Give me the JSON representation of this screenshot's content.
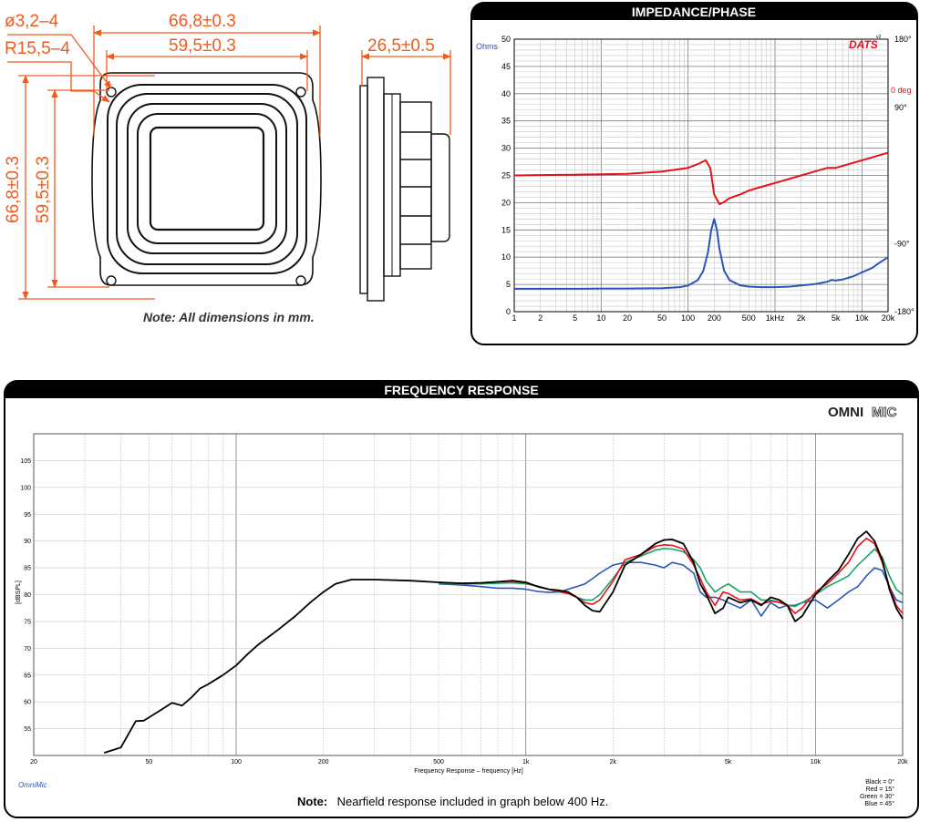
{
  "colors": {
    "dimension": "#f05a1e",
    "impedance": "#2a56b8",
    "phase": "#e8101a",
    "black_0deg": "#000000",
    "red_15deg": "#e8101a",
    "green_30deg": "#19a463",
    "blue_45deg": "#2a56b8"
  },
  "drawing": {
    "dim_hole": "ø3,2–4",
    "dim_radius": "R15,5–4",
    "dim_outer_width": "66,8±0.3",
    "dim_inner_width": "59,5±0.3",
    "dim_outer_height": "66,8±0.3",
    "dim_inner_height": "59,5±0.3",
    "dim_depth": "26,5±0.5",
    "note": "Note:  All dimensions in mm."
  },
  "impedance_panel": {
    "title": "IMPEDANCE/PHASE",
    "logo": "DATS",
    "logo_version": "v2",
    "left_unit": "Ohms",
    "right_zero_label": "0 deg"
  },
  "fr_panel": {
    "title": "FREQUENCY RESPONSE",
    "logo_bold": "OMNI",
    "logo_outline": "MIC",
    "footer_left": "OmniMic",
    "note_bold": "Note:",
    "note_text": " Nearfield response included in graph below 400 Hz.",
    "legend": [
      "Black =  0°",
      "Red = 15°",
      "Green = 30°",
      "Blue = 45°"
    ]
  },
  "chart_data": [
    {
      "type": "line",
      "title": "IMPEDANCE/PHASE",
      "xlabel": "",
      "ylabel": "Ohms",
      "x_scale": "log",
      "xlim": [
        1,
        20000
      ],
      "ylim": [
        0,
        50
      ],
      "x_tick_labels": [
        "1",
        "2",
        "5",
        "10",
        "20",
        "50",
        "100",
        "200",
        "500",
        "1kHz",
        "2k",
        "5k",
        "10k",
        "20k"
      ],
      "y_tick_labels": [
        "0",
        "5",
        "10",
        "15",
        "20",
        "25",
        "30",
        "35",
        "40",
        "45",
        "50"
      ],
      "y2_tick_labels": [
        "180°",
        "90°",
        "0 deg",
        "-90°",
        "-180°"
      ],
      "y2lim": [
        -180,
        180
      ],
      "grid": true,
      "series": [
        {
          "color": "#2a56b8",
          "x": [
            1,
            2,
            5,
            10,
            20,
            50,
            80,
            100,
            130,
            150,
            170,
            185,
            200,
            215,
            230,
            260,
            300,
            400,
            500,
            700,
            1000,
            1500,
            2000,
            3000,
            4000,
            4500,
            5000,
            6000,
            8000,
            10000,
            13000,
            16000,
            20000
          ],
          "y": [
            4.2,
            4.2,
            4.2,
            4.25,
            4.25,
            4.3,
            4.5,
            4.8,
            5.8,
            7.5,
            11.0,
            15.0,
            17.0,
            15.0,
            11.5,
            7.5,
            5.8,
            4.8,
            4.6,
            4.5,
            4.5,
            4.6,
            4.8,
            5.1,
            5.5,
            5.8,
            5.7,
            5.9,
            6.5,
            7.2,
            8.0,
            9.0,
            10.0
          ]
        },
        {
          "color": "#e8101a",
          "y_unit": "deg",
          "x": [
            1,
            2,
            5,
            10,
            20,
            50,
            100,
            130,
            160,
            180,
            200,
            230,
            260,
            300,
            400,
            500,
            700,
            1000,
            2000,
            4000,
            5000,
            10000,
            20000
          ],
          "y": [
            0,
            0.5,
            1,
            1.5,
            2,
            5,
            10,
            15,
            20,
            10,
            -25,
            -38,
            -35,
            -30,
            -25,
            -20,
            -15,
            -10,
            0,
            10,
            10,
            20,
            30
          ]
        }
      ]
    },
    {
      "type": "line",
      "title": "FREQUENCY RESPONSE",
      "xlabel": "Frequency Response – frequency [Hz]",
      "ylabel": "[dBSPL]",
      "x_scale": "log",
      "xlim": [
        20,
        20000
      ],
      "ylim": [
        50,
        110
      ],
      "x_tick_labels": [
        "20",
        "50",
        "100",
        "200",
        "500",
        "1k",
        "2k",
        "5k",
        "10k",
        "20k"
      ],
      "y_tick_labels": [
        "55",
        "60",
        "65",
        "70",
        "75",
        "80",
        "85",
        "90",
        "95",
        "100",
        "105"
      ],
      "grid": true,
      "series": [
        {
          "name": "Black =  0°",
          "color": "#000000",
          "x": [
            35,
            40,
            45,
            48,
            55,
            60,
            65,
            70,
            75,
            80,
            90,
            100,
            110,
            120,
            140,
            160,
            180,
            200,
            220,
            250,
            300,
            400,
            500,
            600,
            700,
            800,
            900,
            1000,
            1100,
            1200,
            1300,
            1400,
            1500,
            1600,
            1700,
            1800,
            2000,
            2200,
            2500,
            2800,
            3000,
            3200,
            3500,
            3800,
            4000,
            4200,
            4500,
            4800,
            5000,
            5500,
            6000,
            6500,
            7000,
            7500,
            8000,
            8500,
            9000,
            10000,
            11000,
            12000,
            13000,
            14000,
            15000,
            16000,
            17000,
            18000,
            19000,
            20000
          ],
          "y": [
            50.5,
            51.5,
            56.4,
            56.5,
            58.5,
            59.8,
            59.3,
            60.8,
            62.5,
            63.3,
            65.0,
            66.8,
            69.0,
            70.8,
            73.5,
            76.0,
            78.5,
            80.5,
            82.0,
            82.8,
            82.8,
            82.6,
            82.3,
            82.1,
            82.2,
            82.4,
            82.6,
            82.3,
            81.5,
            81.0,
            80.8,
            80.5,
            79.5,
            78.0,
            77.0,
            76.8,
            80.5,
            85.5,
            87.5,
            89.5,
            90.2,
            90.3,
            89.5,
            86.0,
            82.0,
            80.0,
            76.5,
            77.5,
            79.5,
            78.5,
            79.0,
            78.0,
            79.5,
            79.0,
            78.0,
            75.0,
            76.0,
            80.0,
            82.5,
            84.5,
            87.5,
            90.5,
            91.8,
            90.0,
            86.5,
            81.0,
            77.5,
            75.5
          ]
        },
        {
          "name": "Red = 15°",
          "color": "#e8101a",
          "x": [
            500,
            600,
            700,
            800,
            900,
            1000,
            1100,
            1200,
            1300,
            1400,
            1500,
            1600,
            1700,
            1800,
            2000,
            2200,
            2500,
            2800,
            3000,
            3200,
            3500,
            3800,
            4000,
            4200,
            4500,
            4800,
            5000,
            5500,
            6000,
            6500,
            7000,
            7500,
            8000,
            8500,
            9000,
            10000,
            11000,
            12000,
            13000,
            14000,
            15000,
            16000,
            17000,
            18000,
            19000,
            20000
          ],
          "y": [
            82.3,
            82.1,
            82.2,
            82.4,
            82.5,
            82.2,
            81.5,
            81.0,
            80.6,
            80.2,
            79.5,
            78.5,
            78.2,
            79.0,
            82.5,
            86.5,
            87.5,
            89.0,
            89.3,
            89.2,
            88.5,
            85.5,
            83.0,
            80.5,
            78.0,
            80.5,
            80.2,
            79.0,
            79.2,
            78.2,
            78.8,
            78.6,
            78.0,
            76.5,
            77.5,
            80.5,
            82.0,
            84.0,
            86.0,
            89.0,
            90.5,
            89.5,
            86.0,
            81.5,
            78.0,
            76.5
          ]
        },
        {
          "name": "Green = 30°",
          "color": "#19a463",
          "x": [
            500,
            600,
            700,
            800,
            900,
            1000,
            1100,
            1200,
            1300,
            1400,
            1500,
            1600,
            1700,
            1800,
            2000,
            2200,
            2500,
            2800,
            3000,
            3200,
            3500,
            3800,
            4000,
            4200,
            4500,
            4800,
            5000,
            5500,
            6000,
            6500,
            7000,
            7500,
            8000,
            8500,
            9000,
            10000,
            11000,
            12000,
            13000,
            14000,
            15000,
            16000,
            17000,
            18000,
            19000,
            20000
          ],
          "y": [
            82.2,
            82.0,
            82.0,
            82.1,
            82.2,
            82.0,
            81.6,
            81.0,
            80.5,
            80.2,
            79.5,
            79.0,
            79.0,
            80.0,
            83.0,
            86.0,
            87.2,
            88.3,
            88.6,
            88.5,
            88.0,
            86.5,
            85.0,
            82.5,
            80.5,
            81.5,
            82.0,
            80.5,
            80.5,
            79.0,
            79.0,
            78.5,
            78.0,
            77.8,
            78.5,
            80.0,
            81.5,
            82.5,
            83.5,
            85.5,
            87.0,
            88.5,
            87.0,
            83.5,
            81.0,
            80.0
          ]
        },
        {
          "name": "Blue = 45°",
          "color": "#2a56b8",
          "x": [
            500,
            600,
            700,
            800,
            900,
            1000,
            1100,
            1200,
            1300,
            1400,
            1500,
            1600,
            1700,
            1800,
            2000,
            2200,
            2500,
            2800,
            3000,
            3200,
            3500,
            3800,
            4000,
            4200,
            4500,
            4800,
            5000,
            5500,
            6000,
            6500,
            7000,
            7500,
            8000,
            8500,
            9000,
            10000,
            11000,
            12000,
            13000,
            14000,
            15000,
            16000,
            17000,
            18000,
            19000,
            20000
          ],
          "y": [
            82.0,
            81.8,
            81.5,
            81.2,
            81.2,
            81.0,
            80.6,
            80.4,
            80.5,
            81.0,
            81.5,
            82.0,
            83.0,
            84.0,
            85.5,
            86.0,
            86.0,
            85.5,
            85.0,
            86.0,
            85.5,
            84.0,
            80.5,
            79.5,
            79.5,
            79.0,
            78.5,
            77.5,
            79.0,
            76.0,
            78.5,
            77.5,
            78.0,
            78.0,
            78.5,
            79.0,
            77.5,
            79.0,
            80.5,
            81.5,
            83.5,
            85.0,
            84.5,
            81.5,
            79.0,
            78.5
          ]
        }
      ]
    }
  ]
}
